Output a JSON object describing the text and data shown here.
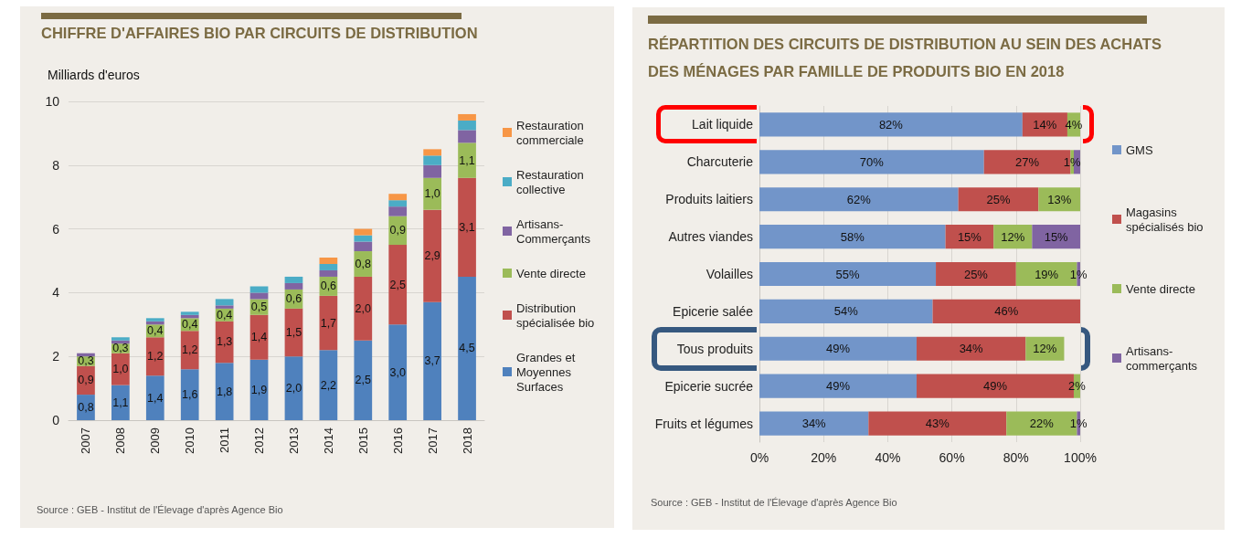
{
  "chart_data": [
    {
      "type": "bar",
      "title": "CHIFFRE D'AFFAIRES BIO PAR CIRCUITS DE DISTRIBUTION",
      "ylabel": "Milliards d'euros",
      "categories": [
        "2007",
        "2008",
        "2009",
        "2010",
        "2011",
        "2012",
        "2013",
        "2014",
        "2015",
        "2016",
        "2017",
        "2018"
      ],
      "stacked": true,
      "series": [
        {
          "name": "Grandes et Moyennes Surfaces",
          "color": "#4f81bd",
          "values": [
            0.8,
            1.1,
            1.4,
            1.6,
            1.8,
            1.9,
            2.0,
            2.2,
            2.5,
            3.0,
            3.7,
            4.5
          ],
          "value_labels": [
            "0,8",
            "1,1",
            "1,4",
            "1,6",
            "1,8",
            "1,9",
            "2,0",
            "2,2",
            "2,5",
            "3,0",
            "3,7",
            "4,5"
          ]
        },
        {
          "name": "Distribution spécialisée bio",
          "color": "#c0504d",
          "values": [
            0.9,
            1.0,
            1.2,
            1.2,
            1.3,
            1.4,
            1.5,
            1.7,
            2.0,
            2.5,
            2.9,
            3.1
          ],
          "value_labels": [
            "0,9",
            "1,0",
            "1,2",
            "1,2",
            "1,3",
            "1,4",
            "1,5",
            "1,7",
            "2,0",
            "2,5",
            "2,9",
            "3,1"
          ]
        },
        {
          "name": "Vente directe",
          "color": "#9bbb59",
          "values": [
            0.3,
            0.3,
            0.4,
            0.4,
            0.4,
            0.5,
            0.6,
            0.6,
            0.8,
            0.9,
            1.0,
            1.1
          ],
          "value_labels": [
            "0,3",
            "0,3",
            "0,4",
            "0,4",
            "0,4",
            "0,5",
            "0,6",
            "0,6",
            "0,8",
            "0,9",
            "1,0",
            "1,1"
          ]
        },
        {
          "name": "Artisans-Commerçants",
          "color": "#8064a2",
          "values": [
            0.1,
            0.1,
            0.1,
            0.1,
            0.1,
            0.2,
            0.2,
            0.2,
            0.3,
            0.3,
            0.4,
            0.4
          ]
        },
        {
          "name": "Restauration collective",
          "color": "#4bacc6",
          "values": [
            null,
            0.1,
            0.1,
            0.1,
            0.2,
            0.2,
            0.2,
            0.2,
            0.2,
            0.2,
            0.3,
            0.3
          ]
        },
        {
          "name": "Restauration commerciale",
          "color": "#f79646",
          "values": [
            null,
            null,
            null,
            null,
            null,
            null,
            null,
            0.2,
            0.2,
            0.2,
            0.2,
            0.2
          ]
        }
      ],
      "ylim": [
        0,
        10
      ],
      "yticks": [
        0,
        2,
        4,
        6,
        8,
        10
      ],
      "grid": "y",
      "legend": "right",
      "annotations": [
        "Source : GEB - Institut de l'Élevage d'après Agence Bio"
      ]
    },
    {
      "type": "bar",
      "orientation": "horizontal",
      "stacked": true,
      "title": "RÉPARTITION DES CIRCUITS DE DISTRIBUTION AU SEIN DES ACHATS DES MÉNAGES PAR FAMILLE DE PRODUITS BIO EN 2018",
      "categories": [
        "Lait liquide",
        "Charcuterie",
        "Produits laitiers",
        "Autres viandes",
        "Volailles",
        "Epicerie salée",
        "Tous produits",
        "Epicerie sucrée",
        "Fruits et légumes"
      ],
      "series": [
        {
          "name": "GMS",
          "color": "#7295c9",
          "values": [
            82,
            70,
            62,
            58,
            55,
            54,
            49,
            49,
            34
          ],
          "value_labels": [
            "82%",
            "70%",
            "62%",
            "58%",
            "55%",
            "54%",
            "49%",
            "49%",
            "34%"
          ]
        },
        {
          "name": "Magasins spécialisés bio",
          "color": "#c0504d",
          "values": [
            14,
            27,
            25,
            15,
            25,
            46,
            34,
            49,
            43
          ],
          "value_labels": [
            "14%",
            "27%",
            "25%",
            "15%",
            "25%",
            "46%",
            "34%",
            "49%",
            "43%"
          ]
        },
        {
          "name": "Vente directe",
          "color": "#9bbb59",
          "values": [
            4,
            1,
            13,
            12,
            19,
            null,
            12,
            2,
            22
          ],
          "value_labels": [
            "4%",
            "1%",
            "13%",
            "12%",
            "19%",
            null,
            "12%",
            "2%",
            "22%"
          ]
        },
        {
          "name": "Artisans-commerçants",
          "color": "#8064a2",
          "values": [
            null,
            2,
            null,
            15,
            1,
            null,
            null,
            null,
            1
          ],
          "value_labels": [
            null,
            null,
            null,
            "15%",
            "1%",
            null,
            null,
            null,
            "1%"
          ]
        }
      ],
      "xlim": [
        0,
        100
      ],
      "xticks": [
        {
          "value": 0,
          "label": "0%"
        },
        {
          "value": 20,
          "label": "20%"
        },
        {
          "value": 40,
          "label": "40%"
        },
        {
          "value": 60,
          "label": "60%"
        },
        {
          "value": 80,
          "label": "80%"
        },
        {
          "value": 100,
          "label": "100%"
        }
      ],
      "grid": "x",
      "legend": "right",
      "annotations": [
        "Source : GEB - Institut de l'Élevage d'après Agence Bio"
      ]
    }
  ]
}
